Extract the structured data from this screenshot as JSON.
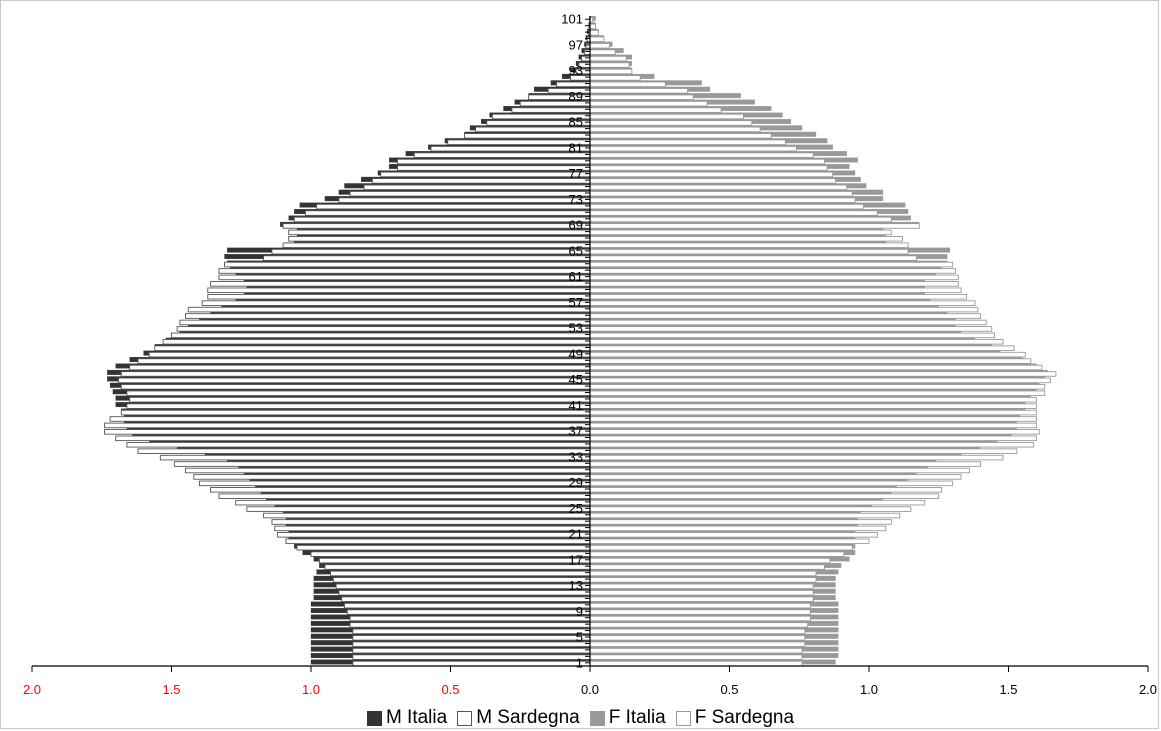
{
  "chart_data": {
    "type": "bar",
    "orientation": "horizontal",
    "layout": "population-pyramid",
    "title": "",
    "xlabel": "",
    "ylabel": "",
    "xlim": [
      -2.0,
      2.0
    ],
    "x_ticks_left": [
      "2.0",
      "1.5",
      "1.0",
      "0.5",
      "0.0"
    ],
    "x_ticks_right": [
      "0.5",
      "1.0",
      "1.5",
      "2.0"
    ],
    "y_ticks": [
      "1",
      "5",
      "9",
      "13",
      "17",
      "21",
      "25",
      "29",
      "33",
      "37",
      "41",
      "45",
      "49",
      "53",
      "57",
      "61",
      "65",
      "69",
      "73",
      "77",
      "81",
      "85",
      "89",
      "93",
      "97",
      "101"
    ],
    "ages": [
      1,
      2,
      3,
      4,
      5,
      6,
      7,
      8,
      9,
      10,
      11,
      12,
      13,
      14,
      15,
      16,
      17,
      18,
      19,
      20,
      21,
      22,
      23,
      24,
      25,
      26,
      27,
      28,
      29,
      30,
      31,
      32,
      33,
      34,
      35,
      36,
      37,
      38,
      39,
      40,
      41,
      42,
      43,
      44,
      45,
      46,
      47,
      48,
      49,
      50,
      51,
      52,
      53,
      54,
      55,
      56,
      57,
      58,
      59,
      60,
      61,
      62,
      63,
      64,
      65,
      66,
      67,
      68,
      69,
      70,
      71,
      72,
      73,
      74,
      75,
      76,
      77,
      78,
      79,
      80,
      81,
      82,
      83,
      84,
      85,
      86,
      87,
      88,
      89,
      90,
      91,
      92,
      93,
      94,
      95,
      96,
      97,
      98,
      99,
      100,
      101
    ],
    "series": [
      {
        "name": "M Italia",
        "side": "left",
        "color": "#333333",
        "values": [
          1.0,
          1.0,
          1.0,
          1.0,
          1.0,
          1.0,
          1.0,
          1.0,
          1.0,
          1.0,
          0.99,
          0.99,
          0.99,
          0.99,
          0.98,
          0.97,
          0.99,
          1.03,
          1.06,
          1.08,
          1.08,
          1.09,
          1.09,
          1.1,
          1.13,
          1.16,
          1.18,
          1.2,
          1.22,
          1.24,
          1.26,
          1.3,
          1.38,
          1.48,
          1.58,
          1.64,
          1.66,
          1.67,
          1.67,
          1.68,
          1.7,
          1.7,
          1.71,
          1.72,
          1.73,
          1.73,
          1.7,
          1.65,
          1.6,
          1.56,
          1.52,
          1.47,
          1.44,
          1.4,
          1.36,
          1.32,
          1.27,
          1.24,
          1.23,
          1.24,
          1.27,
          1.29,
          1.3,
          1.31,
          1.3,
          1.06,
          1.05,
          1.05,
          1.11,
          1.08,
          1.06,
          1.04,
          0.95,
          0.9,
          0.88,
          0.82,
          0.76,
          0.72,
          0.72,
          0.66,
          0.58,
          0.52,
          0.45,
          0.43,
          0.39,
          0.36,
          0.31,
          0.27,
          0.22,
          0.2,
          0.14,
          0.1,
          0.07,
          0.05,
          0.04,
          0.03,
          0.02,
          0.015,
          0.01,
          0.005,
          0.002
        ]
      },
      {
        "name": "M Sardegna",
        "side": "left",
        "color": "#ffffff",
        "stroke": "#555555",
        "values": [
          0.85,
          0.85,
          0.85,
          0.85,
          0.85,
          0.85,
          0.86,
          0.86,
          0.87,
          0.88,
          0.89,
          0.9,
          0.91,
          0.92,
          0.93,
          0.95,
          0.97,
          1.0,
          1.05,
          1.09,
          1.12,
          1.13,
          1.14,
          1.17,
          1.23,
          1.27,
          1.33,
          1.36,
          1.4,
          1.42,
          1.45,
          1.49,
          1.54,
          1.62,
          1.66,
          1.7,
          1.74,
          1.74,
          1.72,
          1.68,
          1.66,
          1.65,
          1.66,
          1.68,
          1.69,
          1.68,
          1.65,
          1.62,
          1.58,
          1.56,
          1.53,
          1.5,
          1.48,
          1.47,
          1.45,
          1.44,
          1.39,
          1.37,
          1.37,
          1.36,
          1.33,
          1.33,
          1.31,
          1.17,
          1.14,
          1.1,
          1.08,
          1.08,
          1.1,
          1.06,
          1.02,
          0.98,
          0.9,
          0.86,
          0.81,
          0.78,
          0.75,
          0.69,
          0.69,
          0.63,
          0.57,
          0.51,
          0.45,
          0.41,
          0.37,
          0.35,
          0.28,
          0.25,
          0.22,
          0.15,
          0.12,
          0.07,
          0.05,
          0.04,
          0.03,
          0.02,
          0.015,
          0.01,
          0.005,
          0.003,
          0.001
        ]
      },
      {
        "name": "F Italia",
        "side": "right",
        "color": "#999999",
        "values": [
          0.88,
          0.89,
          0.89,
          0.89,
          0.89,
          0.89,
          0.89,
          0.89,
          0.89,
          0.89,
          0.88,
          0.88,
          0.88,
          0.88,
          0.89,
          0.9,
          0.93,
          0.95,
          0.95,
          0.95,
          0.95,
          0.96,
          0.96,
          0.97,
          1.01,
          1.05,
          1.08,
          1.1,
          1.14,
          1.17,
          1.21,
          1.24,
          1.33,
          1.4,
          1.46,
          1.51,
          1.53,
          1.53,
          1.54,
          1.56,
          1.56,
          1.58,
          1.6,
          1.61,
          1.63,
          1.64,
          1.6,
          1.55,
          1.47,
          1.44,
          1.38,
          1.33,
          1.31,
          1.31,
          1.28,
          1.25,
          1.22,
          1.2,
          1.2,
          1.2,
          1.24,
          1.26,
          1.28,
          1.28,
          1.29,
          1.06,
          1.06,
          1.05,
          1.18,
          1.15,
          1.14,
          1.13,
          1.05,
          1.05,
          0.99,
          0.97,
          0.95,
          0.93,
          0.96,
          0.92,
          0.87,
          0.85,
          0.81,
          0.76,
          0.72,
          0.69,
          0.65,
          0.59,
          0.54,
          0.43,
          0.4,
          0.23,
          0.15,
          0.15,
          0.15,
          0.12,
          0.08,
          0.05,
          0.03,
          0.02,
          0.02
        ]
      },
      {
        "name": "F Sardegna",
        "side": "right",
        "color": "#ffffff",
        "stroke": "#999999",
        "values": [
          0.76,
          0.76,
          0.76,
          0.77,
          0.77,
          0.77,
          0.78,
          0.79,
          0.79,
          0.79,
          0.8,
          0.8,
          0.8,
          0.81,
          0.81,
          0.84,
          0.86,
          0.91,
          0.94,
          1.0,
          1.03,
          1.06,
          1.08,
          1.11,
          1.15,
          1.2,
          1.25,
          1.26,
          1.3,
          1.33,
          1.36,
          1.4,
          1.48,
          1.53,
          1.59,
          1.6,
          1.61,
          1.6,
          1.6,
          1.6,
          1.6,
          1.6,
          1.63,
          1.63,
          1.65,
          1.67,
          1.62,
          1.58,
          1.56,
          1.52,
          1.48,
          1.45,
          1.44,
          1.42,
          1.4,
          1.39,
          1.38,
          1.35,
          1.33,
          1.32,
          1.32,
          1.31,
          1.3,
          1.17,
          1.14,
          1.14,
          1.12,
          1.08,
          1.18,
          1.08,
          1.03,
          0.98,
          0.95,
          0.94,
          0.92,
          0.88,
          0.87,
          0.85,
          0.84,
          0.8,
          0.74,
          0.7,
          0.65,
          0.61,
          0.58,
          0.55,
          0.47,
          0.42,
          0.37,
          0.35,
          0.27,
          0.18,
          0.15,
          0.14,
          0.13,
          0.09,
          0.07,
          0.05,
          0.03,
          0.02,
          0.01
        ]
      }
    ],
    "legend_placement": "bottom-center",
    "grid": false
  },
  "legend": [
    {
      "label": "M Italia",
      "swatch": "#333333",
      "border": "#333333"
    },
    {
      "label": "M Sardegna",
      "swatch": "#ffffff",
      "border": "#555555"
    },
    {
      "label": "F Italia",
      "swatch": "#999999",
      "border": "#999999"
    },
    {
      "label": "F Sardegna",
      "swatch": "#ffffff",
      "border": "#999999"
    }
  ],
  "colors": {
    "tick_left_label": "#ff0000",
    "tick_right_label": "#000000",
    "axis": "#000000"
  }
}
